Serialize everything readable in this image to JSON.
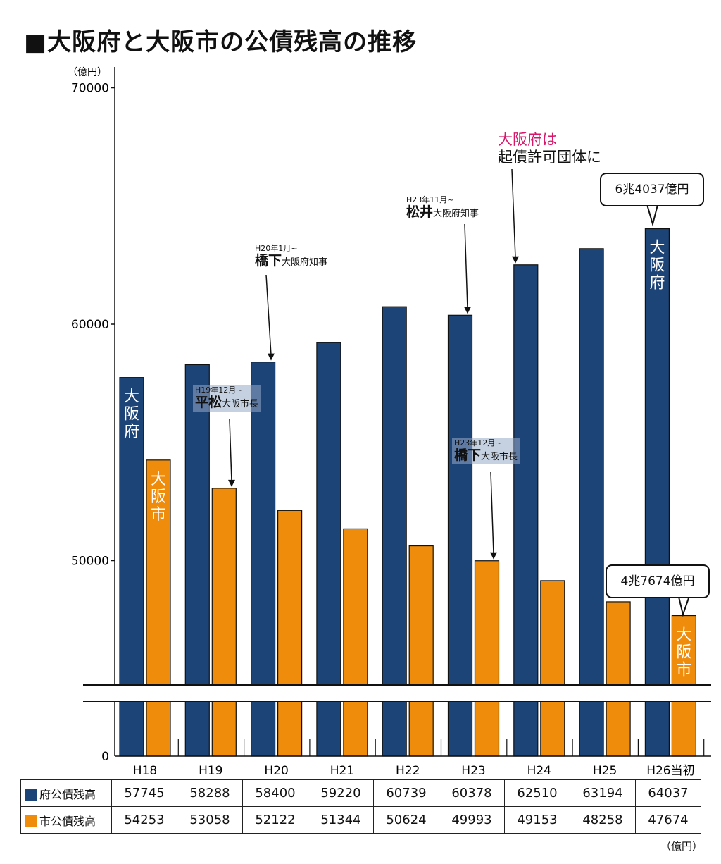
{
  "title": "■大阪府と大阪市の公債残高の推移",
  "colors": {
    "pref": "#1d4477",
    "city": "#ef8c0c"
  },
  "chart_data": {
    "type": "bar",
    "ylabel": "（億円）",
    "ylim": [
      0,
      70000
    ],
    "axis_break": true,
    "yticks": [
      "0",
      "50000",
      "60000",
      "70000"
    ],
    "categories": [
      "H18",
      "H19",
      "H20",
      "H21",
      "H22",
      "H23",
      "H24",
      "H25",
      "H26当初"
    ],
    "series": [
      {
        "name": "府公債残高",
        "values": [
          57745,
          58288,
          58400,
          59220,
          60739,
          60378,
          62510,
          63194,
          64037
        ]
      },
      {
        "name": "市公債残高",
        "values": [
          54253,
          53058,
          52122,
          51344,
          50624,
          49993,
          49153,
          48258,
          47674
        ]
      }
    ],
    "bar_labels": {
      "pref": "大阪府",
      "city": "大阪市"
    }
  },
  "annotations": {
    "hashimoto_pref": {
      "date": "H20年1月~",
      "name": "橋下",
      "role": "大阪府知事"
    },
    "hiramatsu_city": {
      "date": "H19年12月~",
      "name": "平松",
      "role": "大阪市長"
    },
    "matsui_pref": {
      "date": "H23年11月~",
      "name": "松井",
      "role": "大阪府知事"
    },
    "hashimoto_city": {
      "date": "H23年12月~",
      "name": "橋下",
      "role": "大阪市長"
    },
    "kisai_line1": "大阪府は",
    "kisai_line2": "起債許可団体に",
    "callout_pref": "6兆4037億円",
    "callout_city": "4兆7674億円"
  },
  "table": {
    "rows": [
      {
        "label": "府公債残高",
        "values": [
          "57745",
          "58288",
          "58400",
          "59220",
          "60739",
          "60378",
          "62510",
          "63194",
          "64037"
        ]
      },
      {
        "label": "市公債残高",
        "values": [
          "54253",
          "53058",
          "52122",
          "51344",
          "50624",
          "49993",
          "49153",
          "48258",
          "47674"
        ]
      }
    ],
    "unit": "（億円）"
  }
}
